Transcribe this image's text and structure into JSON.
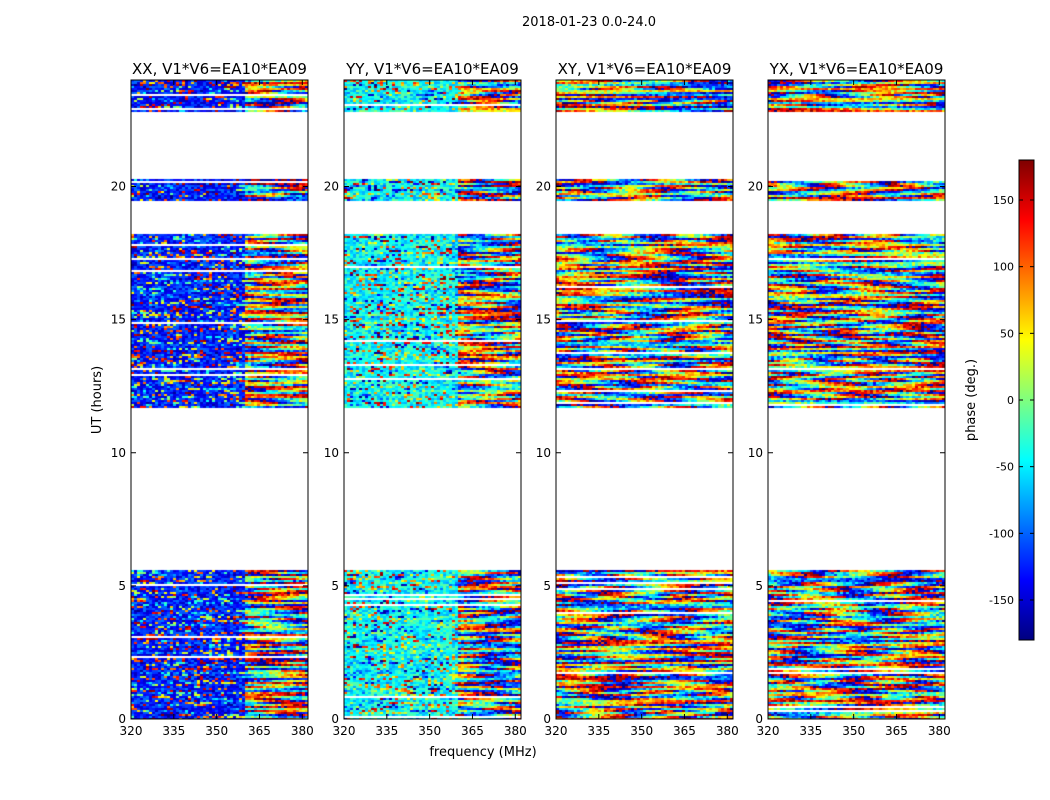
{
  "figure": {
    "suptitle": "2018-01-23 0.0-24.0",
    "xlabel": "frequency (MHz)",
    "ylabel": "UT (hours)"
  },
  "chart_data": {
    "type": "heatmap",
    "title": "2018-01-23 0.0-24.0",
    "xlabel": "frequency (MHz)",
    "ylabel": "UT (hours)",
    "xlim": [
      320,
      382
    ],
    "ylim": [
      0,
      24
    ],
    "x_ticks": [
      320,
      335,
      350,
      365,
      380
    ],
    "y_ticks": [
      0,
      5,
      10,
      15,
      20
    ],
    "panels": [
      {
        "title": "XX, V1*V6=EA10*EA09",
        "noise_hue": 0.15,
        "strong_start_mhz": 360,
        "strong_end_mhz": 382
      },
      {
        "title": "YY, V1*V6=EA10*EA09",
        "noise_hue": 0.38,
        "strong_start_mhz": 360,
        "strong_end_mhz": 382
      },
      {
        "title": "XY, V1*V6=EA10*EA09",
        "noise_hue": null,
        "strong_start_mhz": null,
        "strong_end_mhz": null
      },
      {
        "title": "YX, V1*V6=EA10*EA09",
        "noise_hue": null,
        "strong_start_mhz": null,
        "strong_end_mhz": null
      }
    ],
    "data_time_ranges_hours": [
      [
        0,
        5.6
      ],
      [
        11.7,
        18.2
      ],
      [
        19.5,
        20.3
      ],
      [
        22.8,
        24
      ]
    ],
    "colorbar": {
      "label": "phase (deg.)",
      "range": [
        -180,
        180
      ],
      "ticks": [
        -150,
        -100,
        -50,
        0,
        50,
        100,
        150
      ],
      "colormap": [
        "#00007f",
        "#0000ff",
        "#007fff",
        "#00ffff",
        "#7fff7f",
        "#ffff00",
        "#ff7f00",
        "#ff0000",
        "#7f0000"
      ]
    }
  }
}
